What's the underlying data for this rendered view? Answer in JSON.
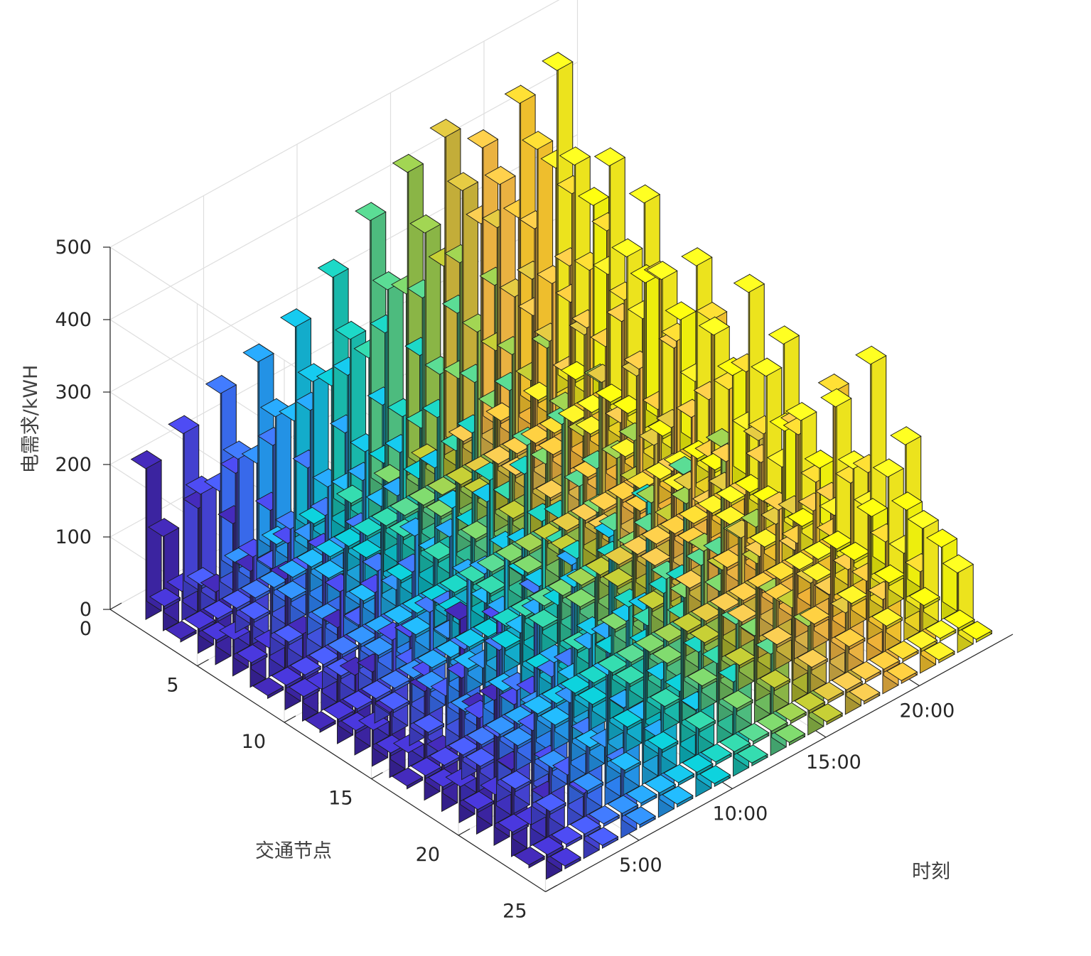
{
  "chart_data": {
    "type": "bar3d",
    "title": "",
    "xlabel": "时刻",
    "ylabel": "交通节点",
    "zlabel": "电需求/kWH",
    "x_ticks": [
      "5:00",
      "10:00",
      "15:00",
      "20:00"
    ],
    "x_tick_values": [
      5,
      10,
      15,
      20
    ],
    "y_ticks": [
      "0",
      "5",
      "10",
      "15",
      "20",
      "25"
    ],
    "y_tick_values": [
      0,
      5,
      10,
      15,
      20,
      25
    ],
    "z_ticks": [
      "0",
      "100",
      "200",
      "300",
      "400",
      "500"
    ],
    "z_tick_values": [
      0,
      100,
      200,
      300,
      400,
      500
    ],
    "zlim": [
      0,
      500
    ],
    "grid": true,
    "colormap": "parula",
    "series_colors": [
      "#3e26a8",
      "#4232c6",
      "#4644da",
      "#4456e9",
      "#3b6ff6",
      "#2e86fb",
      "#259af1",
      "#1fa9e4",
      "#14b5d6",
      "#0cbcc6",
      "#1ac2b3",
      "#2fc59d",
      "#51c585",
      "#73c463",
      "#91bf4a",
      "#b2ba30",
      "#cdb63c",
      "#e0b94a",
      "#f6bb44",
      "#fcbb3b",
      "#fbc82f",
      "#f5dc25",
      "#f8ef1e",
      "#f9fb0e"
    ],
    "times": [
      1,
      2,
      3,
      4,
      5,
      6,
      7,
      8,
      9,
      10,
      11,
      12,
      13,
      14,
      15,
      16,
      17,
      18,
      19,
      20,
      21,
      22,
      23,
      24
    ],
    "nodes": [
      1,
      2,
      3,
      4,
      5,
      6,
      7,
      8,
      9,
      10,
      11,
      12,
      13,
      14,
      15,
      16,
      17,
      18,
      19,
      20,
      21,
      22,
      23,
      24
    ],
    "values": [
      [
        208,
        0,
        228,
        0,
        255,
        0,
        270,
        0,
        290,
        0,
        330,
        0,
        380,
        0,
        418,
        0,
        438,
        0,
        395,
        0,
        428,
        0,
        445,
        0
      ],
      [
        130,
        40,
        160,
        150,
        180,
        160,
        210,
        190,
        230,
        210,
        260,
        220,
        300,
        280,
        350,
        290,
        380,
        320,
        360,
        300,
        380,
        340,
        330,
        260
      ],
      [
        0,
        0,
        0,
        0,
        0,
        0,
        0,
        0,
        0,
        0,
        0,
        0,
        0,
        0,
        0,
        0,
        0,
        0,
        0,
        0,
        0,
        0,
        0,
        0
      ],
      [
        200,
        0,
        220,
        0,
        230,
        0,
        250,
        0,
        270,
        0,
        300,
        0,
        320,
        0,
        340,
        0,
        360,
        0,
        330,
        0,
        350,
        0,
        360,
        0
      ],
      [
        100,
        20,
        120,
        90,
        130,
        100,
        160,
        140,
        180,
        150,
        200,
        170,
        230,
        210,
        260,
        220,
        280,
        240,
        270,
        230,
        260,
        240,
        250,
        200
      ],
      [
        210,
        0,
        200,
        0,
        230,
        0,
        250,
        0,
        260,
        0,
        300,
        0,
        330,
        0,
        340,
        0,
        320,
        0,
        310,
        0,
        330,
        0,
        340,
        0
      ],
      [
        160,
        40,
        170,
        120,
        180,
        120,
        200,
        150,
        210,
        160,
        230,
        170,
        250,
        200,
        260,
        210,
        250,
        190,
        240,
        200,
        250,
        210,
        250,
        180
      ],
      [
        0,
        0,
        0,
        0,
        0,
        0,
        0,
        0,
        0,
        0,
        0,
        0,
        0,
        0,
        0,
        0,
        0,
        0,
        0,
        0,
        0,
        0,
        0,
        0
      ],
      [
        180,
        0,
        190,
        0,
        190,
        0,
        210,
        0,
        220,
        0,
        240,
        0,
        270,
        0,
        300,
        0,
        290,
        0,
        280,
        0,
        310,
        0,
        300,
        0
      ],
      [
        120,
        30,
        150,
        90,
        150,
        110,
        170,
        130,
        180,
        140,
        190,
        150,
        210,
        170,
        230,
        180,
        240,
        170,
        230,
        160,
        240,
        170,
        220,
        150
      ],
      [
        0,
        0,
        0,
        0,
        0,
        0,
        0,
        0,
        0,
        0,
        0,
        0,
        0,
        0,
        0,
        0,
        0,
        0,
        0,
        0,
        0,
        0,
        0,
        0
      ],
      [
        160,
        0,
        180,
        0,
        180,
        0,
        200,
        0,
        220,
        0,
        230,
        0,
        270,
        0,
        300,
        0,
        280,
        0,
        290,
        0,
        300,
        0,
        310,
        0
      ],
      [
        110,
        20,
        130,
        80,
        140,
        90,
        160,
        110,
        170,
        120,
        180,
        130,
        200,
        150,
        210,
        160,
        200,
        150,
        210,
        140,
        220,
        150,
        210,
        120
      ],
      [
        130,
        0,
        150,
        0,
        160,
        0,
        180,
        0,
        190,
        0,
        200,
        0,
        240,
        0,
        250,
        0,
        240,
        0,
        250,
        0,
        260,
        0,
        270,
        0
      ],
      [
        90,
        20,
        110,
        70,
        120,
        80,
        140,
        100,
        150,
        110,
        160,
        120,
        170,
        130,
        180,
        140,
        170,
        130,
        180,
        120,
        190,
        130,
        180,
        100
      ],
      [
        0,
        0,
        0,
        0,
        0,
        0,
        0,
        0,
        0,
        0,
        0,
        0,
        0,
        0,
        0,
        0,
        0,
        0,
        0,
        0,
        0,
        0,
        0,
        0
      ],
      [
        150,
        0,
        140,
        0,
        150,
        0,
        170,
        0,
        180,
        0,
        190,
        0,
        200,
        0,
        210,
        0,
        200,
        0,
        210,
        0,
        220,
        0,
        230,
        0
      ],
      [
        80,
        20,
        100,
        60,
        110,
        70,
        120,
        80,
        130,
        90,
        140,
        100,
        150,
        110,
        160,
        120,
        150,
        110,
        160,
        100,
        170,
        110,
        160,
        80
      ],
      [
        280,
        0,
        250,
        0,
        260,
        0,
        270,
        0,
        280,
        0,
        300,
        0,
        310,
        0,
        320,
        0,
        300,
        0,
        290,
        0,
        310,
        0,
        320,
        0
      ],
      [
        170,
        40,
        150,
        100,
        160,
        110,
        170,
        120,
        180,
        130,
        190,
        140,
        200,
        150,
        210,
        160,
        200,
        150,
        190,
        140,
        200,
        150,
        180,
        120
      ],
      [
        200,
        0,
        180,
        0,
        190,
        0,
        200,
        0,
        210,
        0,
        220,
        0,
        230,
        0,
        240,
        0,
        230,
        0,
        220,
        0,
        230,
        0,
        240,
        0
      ],
      [
        120,
        30,
        100,
        70,
        110,
        80,
        120,
        90,
        130,
        100,
        140,
        110,
        150,
        120,
        160,
        130,
        150,
        120,
        140,
        110,
        150,
        120,
        140,
        100
      ],
      [
        0,
        0,
        0,
        0,
        0,
        0,
        0,
        0,
        0,
        0,
        0,
        0,
        0,
        0,
        0,
        0,
        0,
        0,
        0,
        0,
        0,
        0,
        0,
        0
      ],
      [
        110,
        0,
        90,
        0,
        100,
        0,
        110,
        0,
        120,
        0,
        130,
        0,
        140,
        0,
        150,
        0,
        140,
        0,
        130,
        0,
        140,
        0,
        110,
        0
      ]
    ]
  }
}
